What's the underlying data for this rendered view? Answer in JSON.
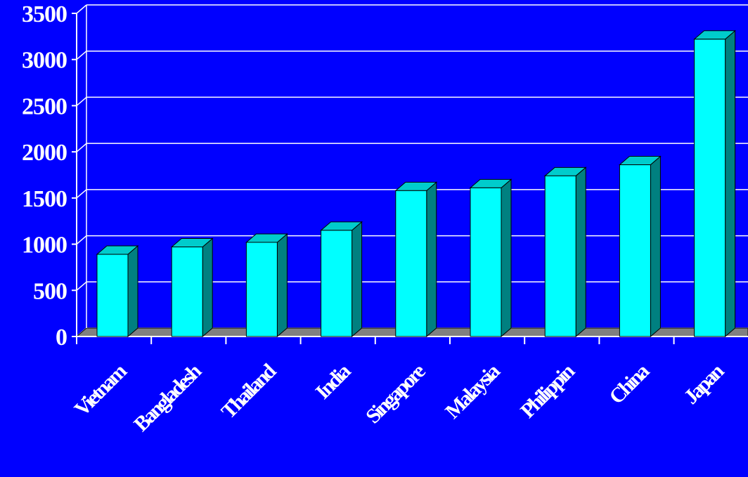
{
  "chart_data": {
    "type": "bar",
    "title": "",
    "xlabel": "",
    "ylabel": "",
    "categories": [
      "Vietnam",
      "Bangladesh",
      "Thailand",
      "India",
      "Singapore",
      "Malaysia",
      "Philippin",
      "China",
      "Japan"
    ],
    "values": [
      890,
      970,
      1020,
      1150,
      1580,
      1610,
      1740,
      1860,
      3220
    ],
    "ylim": [
      0,
      3500
    ],
    "yticks": [
      "0",
      "500",
      "1000",
      "1500",
      "2000",
      "2500",
      "3000",
      "3500"
    ],
    "grid": true,
    "legend": "none",
    "colors": {
      "background": "#0000ff",
      "bar_front": "#00ffff",
      "bar_side": "#008080",
      "bar_top": "#00cccc",
      "floor": "#808080",
      "grid": "#ffffff",
      "text": "#ffffff"
    }
  }
}
